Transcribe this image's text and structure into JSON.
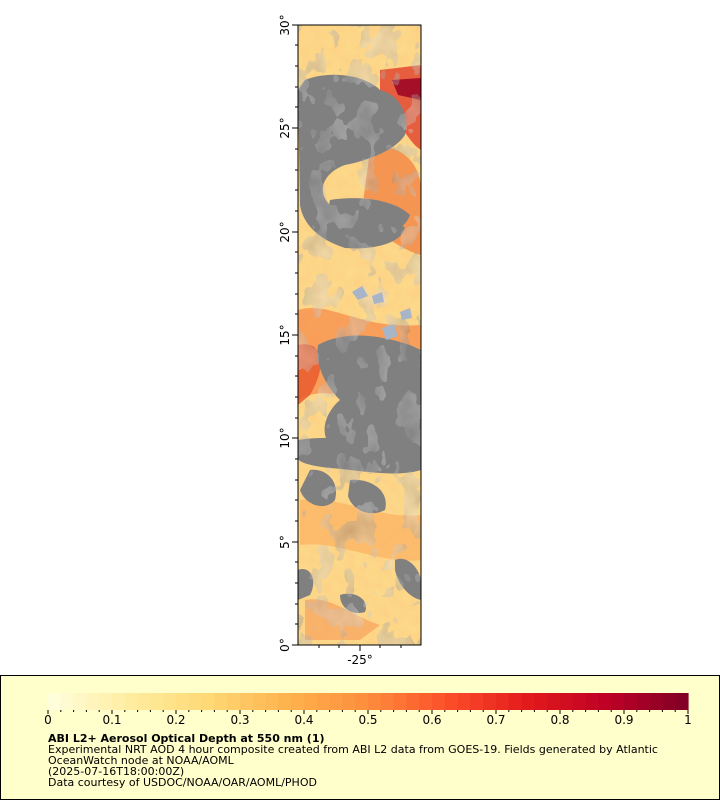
{
  "map": {
    "lat_labels": [
      "30°",
      "25°",
      "20°",
      "15°",
      "10°",
      "5°",
      "0°"
    ],
    "lon_labels": [
      "-25°"
    ],
    "lat_range": [
      0,
      30
    ],
    "lon_range": [
      -28,
      -22
    ],
    "land_color": "#808080",
    "no_data_color": "#a8b4c8"
  },
  "colorbar": {
    "ticks": [
      "0",
      "0.1",
      "0.2",
      "0.3",
      "0.4",
      "0.5",
      "0.6",
      "0.7",
      "0.8",
      "0.9",
      "1"
    ],
    "range": [
      0,
      1
    ],
    "colors": [
      "#ffffe0",
      "#ffeda0",
      "#fed976",
      "#feb24c",
      "#fd8d3c",
      "#fc4e2a",
      "#e31a1c",
      "#bd0026",
      "#800026"
    ]
  },
  "caption": {
    "title": "ABI L2+ Aerosol Optical Depth at 550 nm (1)",
    "line1": "Experimental NRT AOD 4 hour composite created from ABI L2 data from GOES-19. Fields generated by Atlantic",
    "line2": "OceanWatch node at NOAA/AOML",
    "time": "(2025-07-16T18:00:00Z)",
    "credit": "Data courtesy of USDOC/NOAA/OAR/AOML/PHOD"
  }
}
